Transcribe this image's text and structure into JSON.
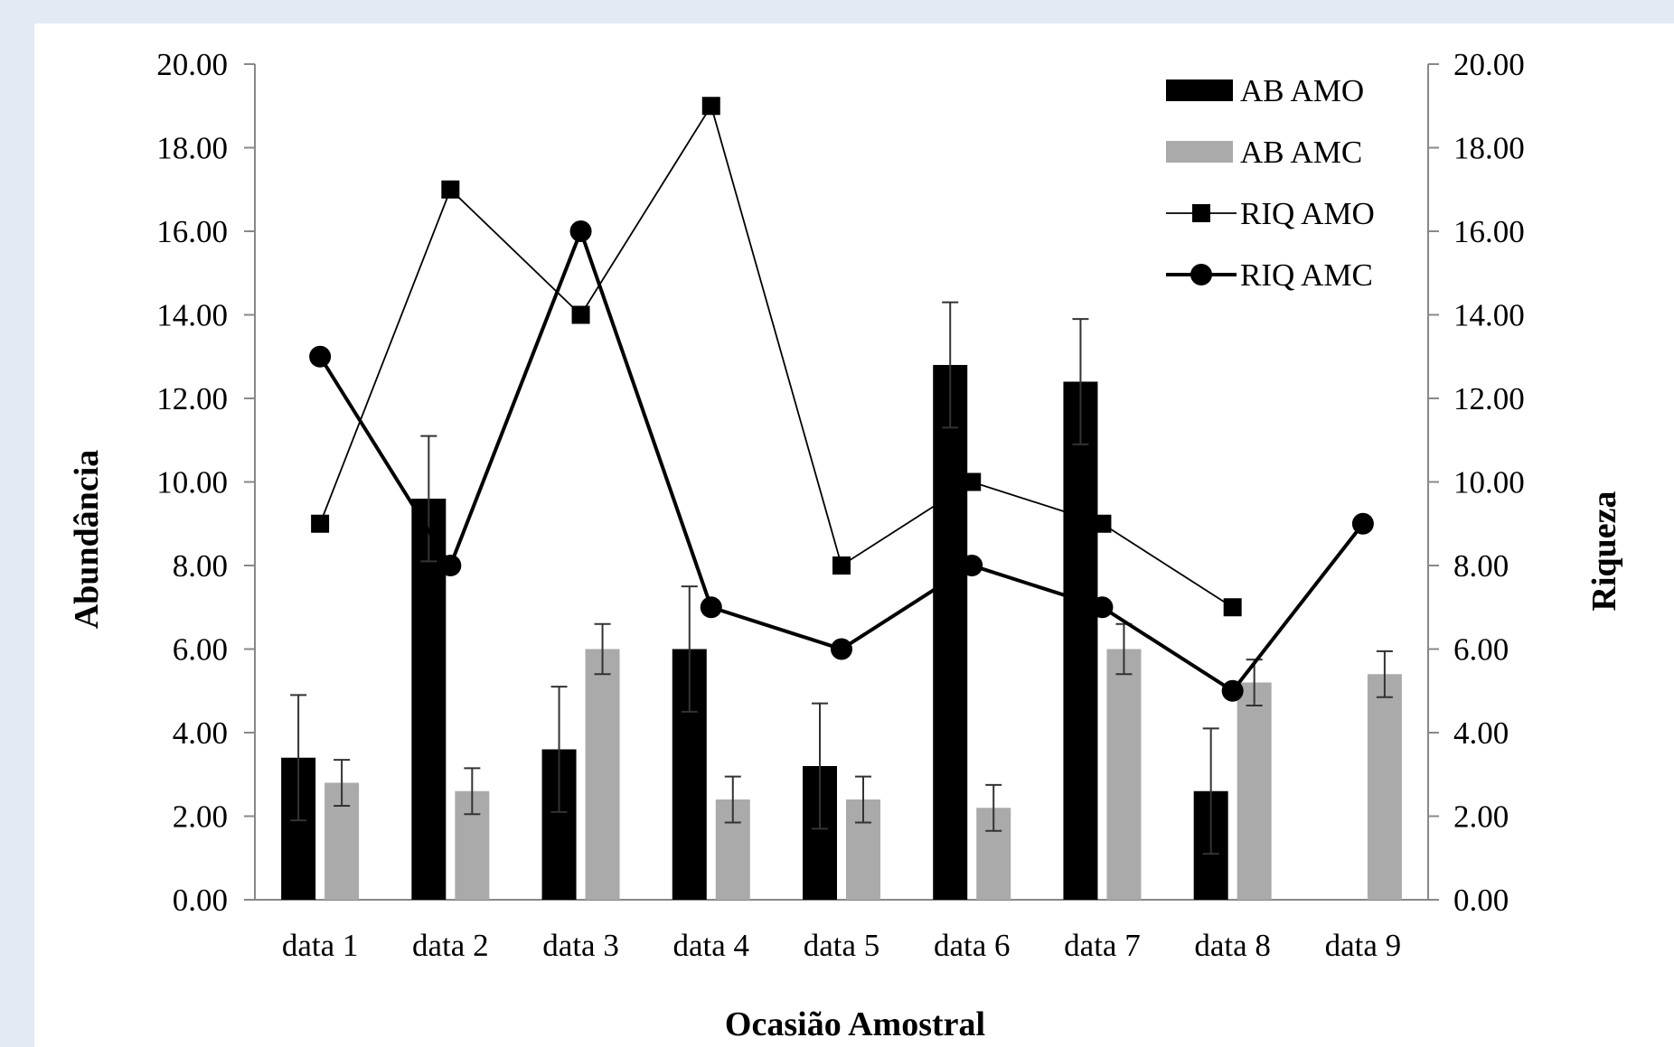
{
  "chart_data": {
    "type": "bar",
    "title": "",
    "xlabel": "Ocasião Amostral",
    "ylabel_left": "Abundância",
    "ylabel_right": "Riqueza",
    "categories": [
      "data 1",
      "data 2",
      "data 3",
      "data 4",
      "data 5",
      "data 6",
      "data 7",
      "data 8",
      "data 9"
    ],
    "ylim_left": [
      0,
      20
    ],
    "ylim_right": [
      0,
      20
    ],
    "y_ticks": [
      "0.00",
      "2.00",
      "4.00",
      "6.00",
      "8.00",
      "10.00",
      "12.00",
      "14.00",
      "16.00",
      "18.00",
      "20.00"
    ],
    "grid": false,
    "legend_placement": "top-right",
    "series": [
      {
        "name": "AB AMO",
        "type": "bar",
        "axis": "left",
        "color": "#000000",
        "values": [
          3.4,
          9.6,
          3.6,
          6.0,
          3.2,
          12.8,
          12.4,
          2.6,
          null
        ],
        "errors": [
          1.5,
          1.5,
          1.5,
          1.5,
          1.5,
          1.5,
          1.5,
          1.5,
          null
        ]
      },
      {
        "name": "AB AMC",
        "type": "bar",
        "axis": "left",
        "color": "#aaaaaa",
        "values": [
          2.8,
          2.6,
          6.0,
          2.4,
          2.4,
          2.2,
          6.0,
          5.2,
          5.4
        ],
        "errors": [
          0.55,
          0.55,
          0.6,
          0.55,
          0.55,
          0.55,
          0.6,
          0.55,
          0.55
        ]
      },
      {
        "name": "RIQ AMO",
        "type": "line",
        "axis": "right",
        "marker": "square",
        "color": "#000000",
        "values": [
          9,
          17,
          14,
          19,
          8,
          10,
          9,
          7,
          null
        ]
      },
      {
        "name": "RIQ AMC",
        "type": "line",
        "axis": "right",
        "marker": "circle",
        "color": "#000000",
        "values": [
          13,
          8,
          16,
          7,
          6,
          8,
          7,
          5,
          9
        ]
      }
    ]
  }
}
